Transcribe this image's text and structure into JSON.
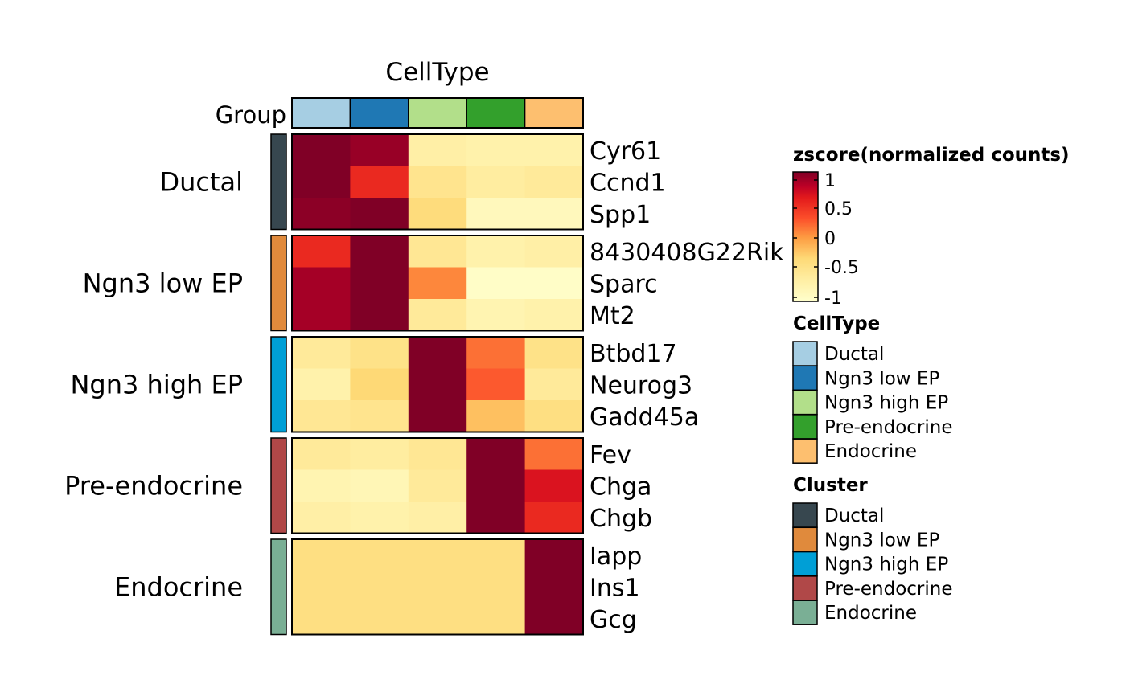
{
  "chart_data": {
    "type": "heatmap",
    "title": "CellType",
    "group_label": "Group",
    "columns": [
      "Ductal",
      "Ngn3 low EP",
      "Ngn3 high EP",
      "Pre-endocrine",
      "Endocrine"
    ],
    "column_colors": [
      "#a6cee3",
      "#1f78b4",
      "#b2df8a",
      "#33a02c",
      "#fdbf6f"
    ],
    "row_groups": [
      {
        "name": "Ductal",
        "color": "#37474f",
        "rows": [
          {
            "gene": "Cyr61",
            "values": [
              1.15,
              1.05,
              -0.75,
              -0.8,
              -0.8
            ]
          },
          {
            "gene": "Ccnd1",
            "values": [
              1.15,
              0.6,
              -0.55,
              -0.7,
              -0.65
            ]
          },
          {
            "gene": "Spp1",
            "values": [
              1.1,
              1.15,
              -0.4,
              -0.95,
              -0.95
            ]
          }
        ]
      },
      {
        "name": "Ngn3 low EP",
        "color": "#e08a3c",
        "rows": [
          {
            "gene": "8430408G22Rik",
            "values": [
              0.6,
              1.15,
              -0.6,
              -0.8,
              -0.75
            ]
          },
          {
            "gene": "Sparc",
            "values": [
              1.0,
              1.15,
              0.1,
              -1.05,
              -1.05
            ]
          },
          {
            "gene": "Mt2",
            "values": [
              1.0,
              1.15,
              -0.65,
              -0.85,
              -0.8
            ]
          }
        ]
      },
      {
        "name": "Ngn3 high EP",
        "color": "#009fd6",
        "rows": [
          {
            "gene": "Btbd17",
            "values": [
              -0.65,
              -0.5,
              1.15,
              0.2,
              -0.5
            ]
          },
          {
            "gene": "Neurog3",
            "values": [
              -0.8,
              -0.35,
              1.15,
              0.3,
              -0.65
            ]
          },
          {
            "gene": "Gadd45a",
            "values": [
              -0.6,
              -0.55,
              1.15,
              -0.2,
              -0.45
            ]
          }
        ]
      },
      {
        "name": "Pre-endocrine",
        "color": "#b04848",
        "rows": [
          {
            "gene": "Fev",
            "values": [
              -0.65,
              -0.7,
              -0.6,
              1.15,
              0.2
            ]
          },
          {
            "gene": "Chga",
            "values": [
              -0.85,
              -0.9,
              -0.65,
              1.15,
              0.75
            ]
          },
          {
            "gene": "Chgb",
            "values": [
              -0.75,
              -0.8,
              -0.75,
              1.15,
              0.6
            ]
          }
        ]
      },
      {
        "name": "Endocrine",
        "color": "#7aaf95",
        "rows": [
          {
            "gene": "Iapp",
            "values": [
              -0.45,
              -0.45,
              -0.45,
              -0.45,
              1.15
            ]
          },
          {
            "gene": "Ins1",
            "values": [
              -0.45,
              -0.45,
              -0.45,
              -0.45,
              1.15
            ]
          },
          {
            "gene": "Gcg",
            "values": [
              -0.45,
              -0.45,
              -0.45,
              -0.45,
              1.15
            ]
          }
        ]
      }
    ],
    "colorscale": {
      "title": "zscore(normalized counts)",
      "min": -1.1,
      "max": 1.15,
      "ticks": [
        1,
        0.5,
        0,
        -0.5,
        -1
      ],
      "tick_labels": [
        "1",
        "0.5",
        "0",
        "-0.5",
        "-1"
      ],
      "stops": [
        {
          "v": -1.1,
          "c": "#ffffcc"
        },
        {
          "v": -0.7,
          "c": "#ffeda0"
        },
        {
          "v": -0.35,
          "c": "#fed976"
        },
        {
          "v": 0.0,
          "c": "#fd9e43"
        },
        {
          "v": 0.35,
          "c": "#fc4e2a"
        },
        {
          "v": 0.7,
          "c": "#e31a1c"
        },
        {
          "v": 0.9,
          "c": "#bd0026"
        },
        {
          "v": 1.15,
          "c": "#800026"
        }
      ]
    },
    "legends": [
      {
        "title": "CellType",
        "items": [
          {
            "label": "Ductal",
            "color": "#a6cee3"
          },
          {
            "label": "Ngn3 low EP",
            "color": "#1f78b4"
          },
          {
            "label": "Ngn3 high EP",
            "color": "#b2df8a"
          },
          {
            "label": "Pre-endocrine",
            "color": "#33a02c"
          },
          {
            "label": "Endocrine",
            "color": "#fdbf6f"
          }
        ]
      },
      {
        "title": "Cluster",
        "items": [
          {
            "label": "Ductal",
            "color": "#37474f"
          },
          {
            "label": "Ngn3 low EP",
            "color": "#e08a3c"
          },
          {
            "label": "Ngn3 high EP",
            "color": "#009fd6"
          },
          {
            "label": "Pre-endocrine",
            "color": "#b04848"
          },
          {
            "label": "Endocrine",
            "color": "#7aaf95"
          }
        ]
      }
    ],
    "legend_position": "right"
  }
}
